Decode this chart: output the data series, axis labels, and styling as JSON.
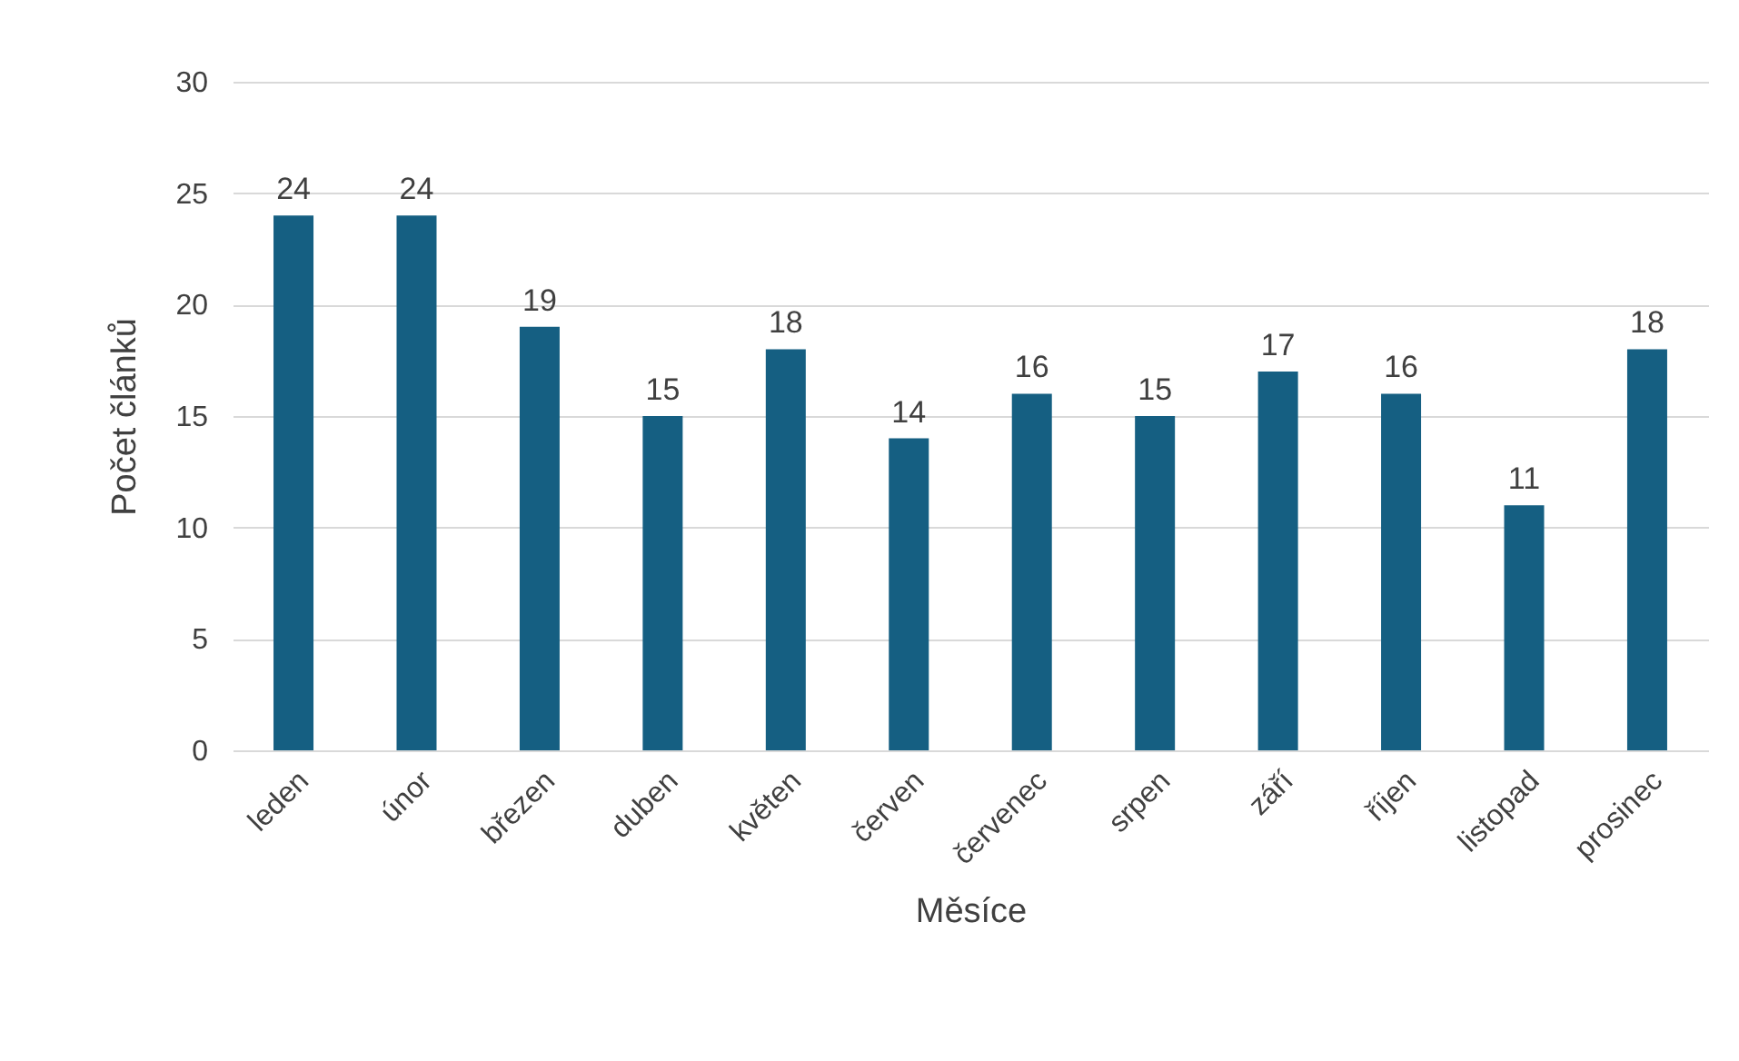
{
  "chart_data": {
    "type": "bar",
    "xlabel": "Měsíce",
    "ylabel": "Počet článků",
    "categories": [
      "leden",
      "únor",
      "březen",
      "duben",
      "květen",
      "červen",
      "červenec",
      "srpen",
      "září",
      "říjen",
      "listopad",
      "prosinec"
    ],
    "values": [
      24,
      24,
      19,
      15,
      18,
      14,
      16,
      15,
      17,
      16,
      11,
      18
    ],
    "color": "#155f82",
    "ylim": [
      0,
      30
    ],
    "yticks": [
      0,
      5,
      10,
      15,
      20,
      25,
      30
    ],
    "grid": "y",
    "data_labels": true
  }
}
